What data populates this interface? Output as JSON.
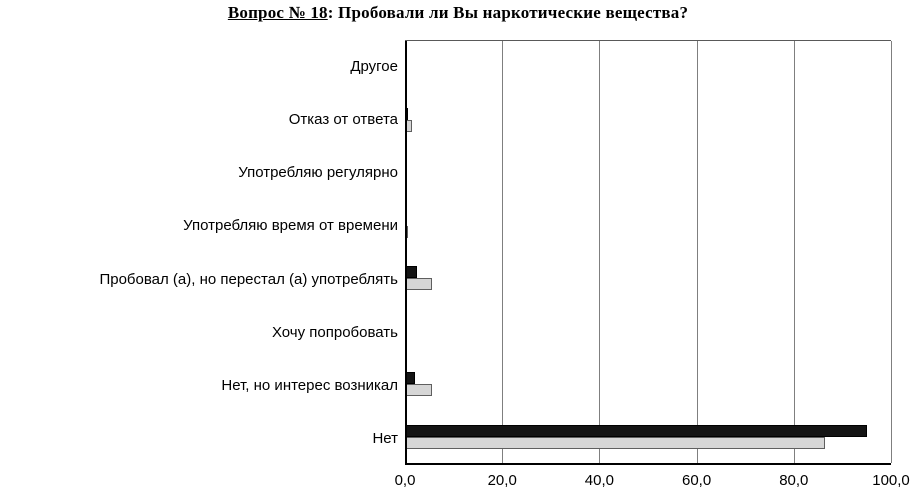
{
  "title": {
    "underlined": "Вопрос № 18",
    "rest": ": Пробовали ли Вы наркотические вещества?"
  },
  "chart_data": {
    "type": "bar",
    "orientation": "horizontal",
    "title": "Вопрос № 18: Пробовали ли Вы наркотические вещества?",
    "categories": [
      "Другое",
      "Отказ от ответа",
      "Употребляю регулярно",
      "Употребляю время от времени",
      "Пробовал (а), но перестал (а) употреблять",
      "Хочу попробовать",
      "Нет, но интерес возникал",
      "Нет"
    ],
    "series": [
      {
        "name": "black",
        "color": "#141414",
        "values": [
          0.3,
          0.7,
          0.0,
          0.4,
          2.5,
          0.4,
          2.0,
          95.0
        ]
      },
      {
        "name": "gray",
        "color": "#d6d6d6",
        "values": [
          0.2,
          1.4,
          0.0,
          0.6,
          5.5,
          0.3,
          5.5,
          86.5
        ]
      }
    ],
    "xlim": [
      0,
      100
    ],
    "xticks": [
      "0,0",
      "20,0",
      "40,0",
      "60,0",
      "80,0",
      "100,0"
    ],
    "xtick_values": [
      0,
      20,
      40,
      60,
      80,
      100
    ],
    "grid": true,
    "legend": false
  }
}
